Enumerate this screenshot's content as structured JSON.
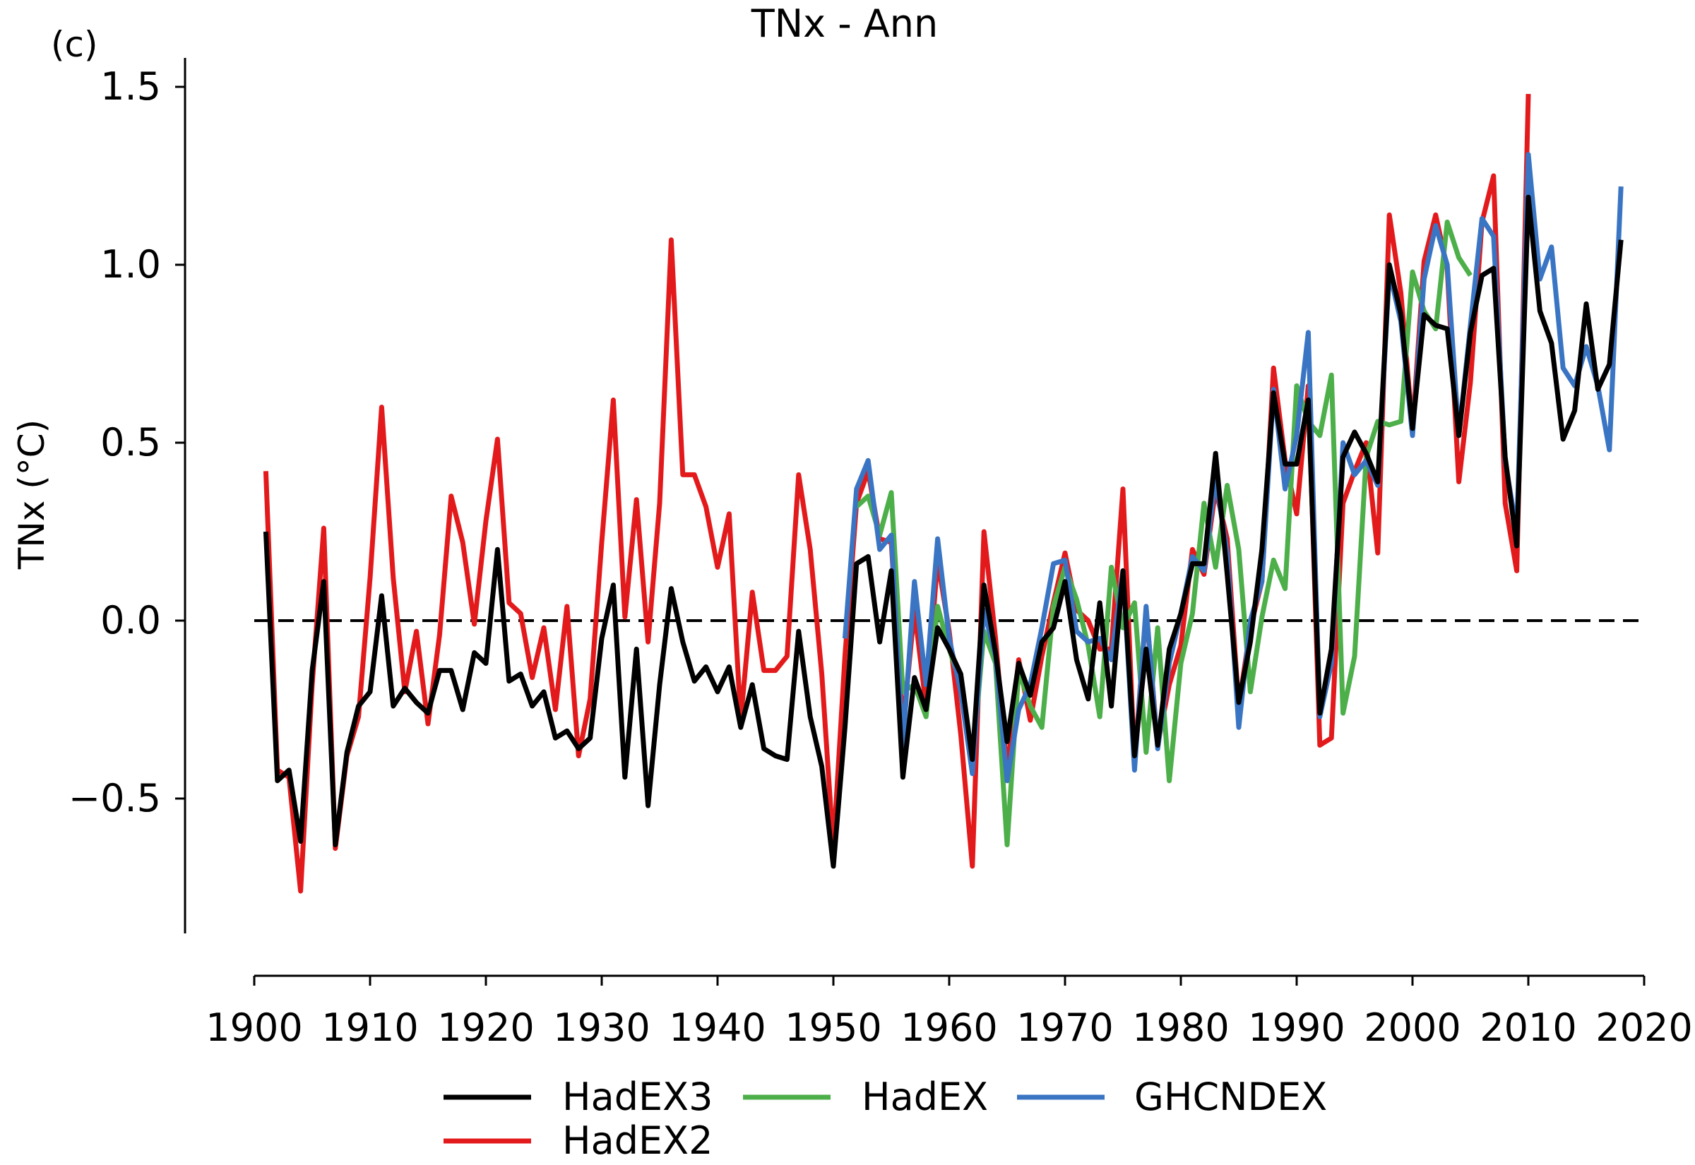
{
  "panel_label": "(c)",
  "chart_data": {
    "type": "line",
    "title": "TNx - Ann",
    "xlabel": "",
    "ylabel": "TNx (°C)",
    "xlim": [
      1900,
      2020
    ],
    "ylim": [
      -0.88,
      1.58
    ],
    "xticks": [
      1900,
      1910,
      1920,
      1930,
      1940,
      1950,
      1960,
      1970,
      1980,
      1990,
      2000,
      2010,
      2020
    ],
    "xtick_labels": [
      "1900",
      "1910",
      "1920",
      "1930",
      "1940",
      "1950",
      "1960",
      "1970",
      "1980",
      "1990",
      "2000",
      "2010",
      "2020"
    ],
    "yticks": [
      -0.5,
      0.0,
      0.5,
      1.0,
      1.5
    ],
    "ytick_labels": [
      "−0.5",
      "0.0",
      "0.5",
      "1.0",
      "1.5"
    ],
    "grid": false,
    "legend_position": "bottom-center",
    "reference_line": {
      "y": 0.0,
      "style": "dashed",
      "color": "#000000"
    },
    "series": [
      {
        "name": "HadEX2",
        "color": "#e31a1c",
        "x_start": 1901,
        "values": [
          0.42,
          -0.42,
          -0.44,
          -0.76,
          -0.18,
          0.26,
          -0.64,
          -0.38,
          -0.27,
          0.12,
          0.6,
          0.12,
          -0.2,
          -0.03,
          -0.29,
          -0.04,
          0.35,
          0.22,
          -0.01,
          0.28,
          0.51,
          0.05,
          0.02,
          -0.16,
          -0.02,
          -0.25,
          0.04,
          -0.38,
          -0.22,
          0.22,
          0.62,
          0.01,
          0.34,
          -0.06,
          0.33,
          1.07,
          0.41,
          0.41,
          0.32,
          0.15,
          0.3,
          -0.28,
          0.08,
          -0.14,
          -0.14,
          -0.1,
          0.41,
          0.2,
          -0.15,
          -0.64,
          -0.1,
          0.33,
          0.42,
          0.23,
          0.22,
          -0.3,
          0.03,
          -0.24,
          0.17,
          -0.03,
          -0.32,
          -0.69,
          0.25,
          -0.05,
          -0.43,
          -0.11,
          -0.28,
          -0.1,
          0.05,
          0.19,
          0.03,
          0.0,
          -0.08,
          -0.08,
          0.37,
          -0.4,
          0.03,
          -0.35,
          -0.18,
          -0.07,
          0.2,
          0.13,
          0.37,
          0.23,
          -0.24,
          -0.02,
          0.11,
          0.71,
          0.45,
          0.3,
          0.66,
          -0.35,
          -0.33,
          0.33,
          0.42,
          0.5,
          0.19,
          1.14,
          0.92,
          0.54,
          1.01,
          1.14,
          0.99,
          0.39,
          0.67,
          1.12,
          1.25,
          0.33,
          0.14,
          1.48
        ]
      },
      {
        "name": "HadEX",
        "color": "#4daf4a",
        "x_start": 1952,
        "values": [
          0.32,
          0.35,
          0.24,
          0.36,
          -0.2,
          -0.18,
          -0.27,
          0.04,
          -0.08,
          -0.18,
          -0.4,
          -0.03,
          -0.12,
          -0.63,
          -0.14,
          -0.24,
          -0.3,
          0.04,
          0.15,
          0.06,
          -0.07,
          -0.27,
          0.15,
          -0.02,
          0.05,
          -0.37,
          -0.02,
          -0.45,
          -0.12,
          0.02,
          0.33,
          0.15,
          0.38,
          0.2,
          -0.2,
          0.01,
          0.17,
          0.09,
          0.66,
          0.56,
          0.52,
          0.69,
          -0.26,
          -0.1,
          0.46,
          0.56,
          0.55,
          0.56,
          0.98,
          0.87,
          0.82,
          1.12,
          1.02,
          0.97
        ]
      },
      {
        "name": "GHCNDEX",
        "color": "#3a75c4",
        "x_start": 1951,
        "values": [
          -0.05,
          0.37,
          0.45,
          0.2,
          0.24,
          -0.35,
          0.11,
          -0.18,
          0.23,
          -0.05,
          -0.2,
          -0.43,
          0.03,
          -0.1,
          -0.45,
          -0.25,
          -0.18,
          -0.02,
          0.16,
          0.17,
          -0.03,
          -0.06,
          -0.05,
          -0.11,
          0.14,
          -0.42,
          0.04,
          -0.36,
          -0.12,
          0.02,
          0.18,
          0.14,
          0.4,
          0.19,
          -0.3,
          0.0,
          0.11,
          0.65,
          0.37,
          0.52,
          0.81,
          -0.27,
          -0.12,
          0.5,
          0.41,
          0.45,
          0.38,
          0.98,
          0.84,
          0.52,
          0.96,
          1.11,
          1.0,
          0.52,
          0.83,
          1.13,
          1.08,
          0.45,
          0.25,
          1.31,
          0.96,
          1.05,
          0.71,
          0.66,
          0.77,
          0.66,
          0.48,
          1.22
        ]
      },
      {
        "name": "HadEX3",
        "color": "#000000",
        "x_start": 1901,
        "values": [
          0.25,
          -0.45,
          -0.42,
          -0.62,
          -0.14,
          0.11,
          -0.63,
          -0.37,
          -0.24,
          -0.2,
          0.07,
          -0.24,
          -0.19,
          -0.23,
          -0.26,
          -0.14,
          -0.14,
          -0.25,
          -0.09,
          -0.12,
          0.2,
          -0.17,
          -0.15,
          -0.24,
          -0.2,
          -0.33,
          -0.31,
          -0.36,
          -0.33,
          -0.05,
          0.1,
          -0.44,
          -0.08,
          -0.52,
          -0.18,
          0.09,
          -0.06,
          -0.17,
          -0.13,
          -0.2,
          -0.13,
          -0.3,
          -0.18,
          -0.36,
          -0.38,
          -0.39,
          -0.03,
          -0.27,
          -0.41,
          -0.69,
          -0.3,
          0.16,
          0.18,
          -0.06,
          0.14,
          -0.44,
          -0.16,
          -0.25,
          -0.02,
          -0.08,
          -0.15,
          -0.39,
          0.1,
          -0.09,
          -0.34,
          -0.12,
          -0.21,
          -0.06,
          -0.02,
          0.11,
          -0.11,
          -0.22,
          0.05,
          -0.24,
          0.14,
          -0.38,
          -0.08,
          -0.35,
          -0.08,
          0.02,
          0.16,
          0.16,
          0.47,
          0.13,
          -0.23,
          -0.06,
          0.2,
          0.64,
          0.44,
          0.44,
          0.62,
          -0.26,
          -0.08,
          0.46,
          0.53,
          0.47,
          0.39,
          1.0,
          0.86,
          0.54,
          0.86,
          0.83,
          0.82,
          0.52,
          0.81,
          0.97,
          0.99,
          0.46,
          0.21,
          1.19,
          0.87,
          0.78,
          0.51,
          0.59,
          0.89,
          0.65,
          0.72,
          1.07
        ]
      }
    ]
  },
  "legend": {
    "items": [
      {
        "label": "HadEX3",
        "color": "#000000"
      },
      {
        "label": "HadEX",
        "color": "#4daf4a"
      },
      {
        "label": "GHCNDEX",
        "color": "#3a75c4"
      },
      {
        "label": "HadEX2",
        "color": "#e31a1c"
      }
    ]
  }
}
